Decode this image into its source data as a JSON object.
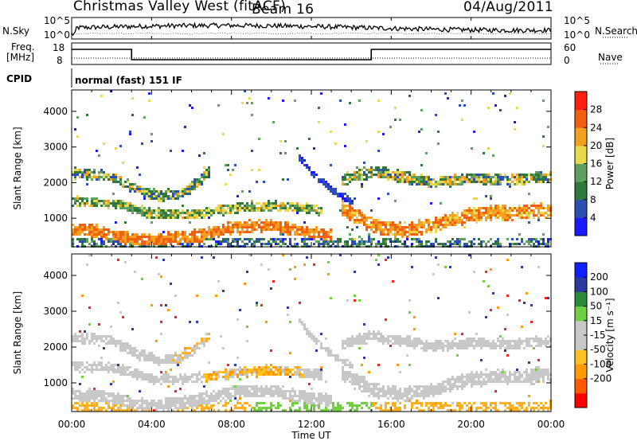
{
  "header": {
    "station": "Christmas Valley West (fitACF)",
    "beam": "Beam 16",
    "date": "04/Aug/2011"
  },
  "noise_panel": {
    "left_label": "N.Sky",
    "right_label": "N.Search",
    "left_ticks": [
      "10^5",
      "10^0"
    ],
    "right_ticks": [
      "10^5",
      "10^0"
    ]
  },
  "freq_panel": {
    "left_label_line1": "Freq.",
    "left_label_line2": "[MHz]",
    "right_label": "Nave",
    "left_ticks": [
      "18",
      "8"
    ],
    "right_ticks": [
      "60",
      "0"
    ],
    "cpid_label": "CPID",
    "cpid_text": "normal (fast) 151 IF"
  },
  "colors": {
    "power_scale": [
      "#1a1aff",
      "#2b4fb5",
      "#2f7a3a",
      "#5fa060",
      "#e8d94a",
      "#f5a020",
      "#f06010",
      "#ff2010"
    ],
    "velocity_scale": [
      "#ff0000",
      "#ff5a00",
      "#ff9a00",
      "#ffc020",
      "#c8c8c8",
      "#c8c8c8",
      "#6fd040",
      "#2a8a3a",
      "#2a3aa0",
      "#1020ff"
    ]
  },
  "chart_data": [
    {
      "type": "heatmap",
      "name_hint": "power",
      "ylabel": "Slant Range [km]",
      "yticks": [
        1000,
        2000,
        3000,
        4000
      ],
      "ylim": [
        200,
        4600
      ],
      "xlim": [
        0,
        24
      ],
      "xticks": [
        "00:00",
        "04:00",
        "08:00",
        "12:00",
        "16:00",
        "20:00",
        "00:00"
      ],
      "colorbar_label": "Power [dB]",
      "colorbar_ticks": [
        "4",
        "8",
        "12",
        "16",
        "20",
        "24",
        "28"
      ]
    },
    {
      "type": "heatmap",
      "name_hint": "velocity",
      "ylabel": "Slant Range [km]",
      "yticks": [
        1000,
        2000,
        3000,
        4000
      ],
      "ylim": [
        200,
        4600
      ],
      "xlim": [
        0,
        24
      ],
      "xticks": [
        "00:00",
        "04:00",
        "08:00",
        "12:00",
        "16:00",
        "20:00",
        "00:00"
      ],
      "xlabel": "Time UT",
      "colorbar_label": "Velocity [m s⁻¹]",
      "colorbar_ticks": [
        "200",
        "100",
        "50",
        "15",
        "-15",
        "-50",
        "-100",
        "-200"
      ]
    }
  ]
}
